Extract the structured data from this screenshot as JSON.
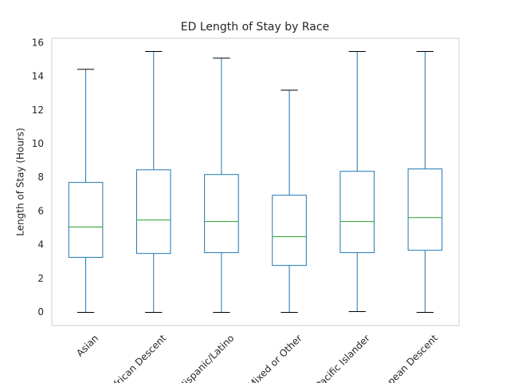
{
  "chart_data": {
    "type": "box",
    "title": "ED Length of Stay by Race",
    "ylabel": "Length of Stay (Hours)",
    "categories": [
      "Asian",
      "African Descent",
      "Hispanic/Latino",
      "Mixed or Other",
      "Pacific Islander",
      "European Descent"
    ],
    "boxes": [
      {
        "min": 0,
        "q1": 3.27,
        "median": 5.07,
        "q3": 7.72,
        "max": 14.44
      },
      {
        "min": 0,
        "q1": 3.5,
        "median": 5.49,
        "q3": 8.47,
        "max": 15.5
      },
      {
        "min": 0,
        "q1": 3.55,
        "median": 5.4,
        "q3": 8.19,
        "max": 15.1
      },
      {
        "min": 0,
        "q1": 2.79,
        "median": 4.5,
        "q3": 6.96,
        "max": 13.2
      },
      {
        "min": 0.05,
        "q1": 3.55,
        "median": 5.4,
        "q3": 8.38,
        "max": 15.5
      },
      {
        "min": 0,
        "q1": 3.69,
        "median": 5.63,
        "q3": 8.52,
        "max": 15.5
      }
    ],
    "box_color": "#1f77b4",
    "median_color": "#2ca02c",
    "cap_color": "#000000",
    "ylim": [
      -0.78,
      16.28
    ],
    "yticks": [
      0,
      2,
      4,
      6,
      8,
      10,
      12,
      14,
      16
    ],
    "grid": false
  }
}
